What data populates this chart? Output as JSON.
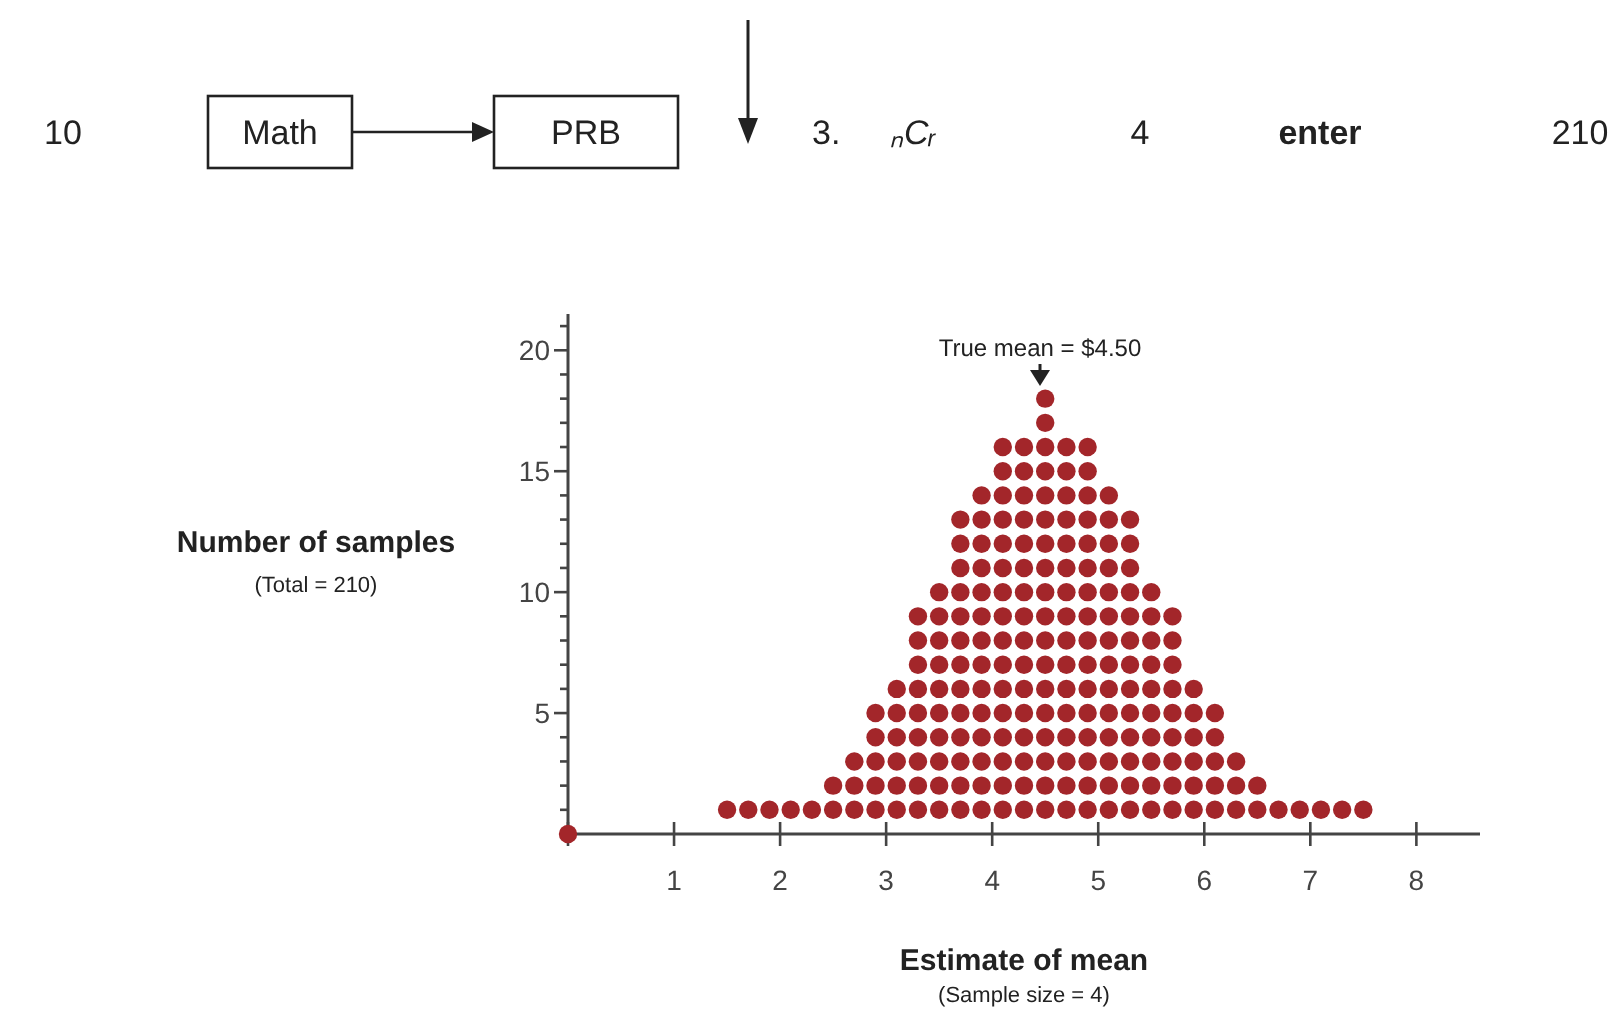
{
  "chart_data": {
    "type": "scatter",
    "xlabel": "Estimate of mean",
    "ylabel": "Number of samples",
    "marker": "circle",
    "xlim": [
      0,
      8.6
    ],
    "ylim": [
      0,
      21.5
    ],
    "xticks": [
      {
        "value": 0,
        "label": null
      },
      1,
      2,
      3,
      4,
      5,
      6,
      7,
      8
    ],
    "yticks": [
      {
        "value": 0,
        "label": null
      },
      {
        "value": 1,
        "label": null
      },
      {
        "value": 2,
        "label": null
      },
      {
        "value": 3,
        "label": null
      },
      {
        "value": 4,
        "label": null
      },
      5,
      {
        "value": 6,
        "label": null
      },
      {
        "value": 7,
        "label": null
      },
      {
        "value": 8,
        "label": null
      },
      {
        "value": 9,
        "label": null
      },
      10,
      {
        "value": 11,
        "label": null
      },
      {
        "value": 12,
        "label": null
      },
      {
        "value": 13,
        "label": null
      },
      {
        "value": 14,
        "label": null
      },
      15,
      {
        "value": 16,
        "label": null
      },
      {
        "value": 17,
        "label": null
      },
      {
        "value": 18,
        "label": null
      },
      {
        "value": 19,
        "label": null
      },
      20,
      {
        "value": 21,
        "label": null
      }
    ],
    "annotations": [
      "True mean = $4.50",
      "(Total = 210)",
      "(Sample size = 4)",
      "10",
      "Math",
      "PRB",
      "3.",
      "ₙCᵣ",
      "4",
      "enter",
      "210"
    ],
    "series": [
      {
        "color": "#a3262a",
        "x": [
          0,
          1.5,
          1.7,
          1.9,
          2.1,
          2.3,
          2.5,
          2.5,
          2.7,
          2.7,
          2.7,
          2.9,
          2.9,
          2.9,
          2.9,
          2.9,
          3.1,
          3.1,
          3.1,
          3.1,
          3.1,
          3.1,
          3.3,
          3.3,
          3.3,
          3.3,
          3.3,
          3.3,
          3.3,
          3.3,
          3.3,
          3.5,
          3.5,
          3.5,
          3.5,
          3.5,
          3.5,
          3.5,
          3.5,
          3.5,
          3.5,
          3.7,
          3.7,
          3.7,
          3.7,
          3.7,
          3.7,
          3.7,
          3.7,
          3.7,
          3.7,
          3.7,
          3.7,
          3.7,
          3.9,
          3.9,
          3.9,
          3.9,
          3.9,
          3.9,
          3.9,
          3.9,
          3.9,
          3.9,
          3.9,
          3.9,
          3.9,
          3.9,
          4.1,
          4.1,
          4.1,
          4.1,
          4.1,
          4.1,
          4.1,
          4.1,
          4.1,
          4.1,
          4.1,
          4.1,
          4.1,
          4.1,
          4.1,
          4.1,
          4.3,
          4.3,
          4.3,
          4.3,
          4.3,
          4.3,
          4.3,
          4.3,
          4.3,
          4.3,
          4.3,
          4.3,
          4.3,
          4.3,
          4.3,
          4.3,
          4.5,
          4.5,
          4.5,
          4.5,
          4.5,
          4.5,
          4.5,
          4.5,
          4.5,
          4.5,
          4.5,
          4.5,
          4.5,
          4.5,
          4.5,
          4.5,
          4.5,
          4.5,
          4.7,
          4.7,
          4.7,
          4.7,
          4.7,
          4.7,
          4.7,
          4.7,
          4.7,
          4.7,
          4.7,
          4.7,
          4.7,
          4.7,
          4.7,
          4.7,
          4.9,
          4.9,
          4.9,
          4.9,
          4.9,
          4.9,
          4.9,
          4.9,
          4.9,
          4.9,
          4.9,
          4.9,
          4.9,
          4.9,
          4.9,
          4.9,
          5.1,
          5.1,
          5.1,
          5.1,
          5.1,
          5.1,
          5.1,
          5.1,
          5.1,
          5.1,
          5.1,
          5.1,
          5.1,
          5.1,
          5.3,
          5.3,
          5.3,
          5.3,
          5.3,
          5.3,
          5.3,
          5.3,
          5.3,
          5.3,
          5.3,
          5.3,
          5.3,
          5.5,
          5.5,
          5.5,
          5.5,
          5.5,
          5.5,
          5.5,
          5.5,
          5.5,
          5.5,
          5.7,
          5.7,
          5.7,
          5.7,
          5.7,
          5.7,
          5.7,
          5.7,
          5.7,
          5.9,
          5.9,
          5.9,
          5.9,
          5.9,
          5.9,
          6.1,
          6.1,
          6.1,
          6.1,
          6.1,
          6.3,
          6.3,
          6.3,
          6.5,
          6.5,
          6.7,
          6.9,
          7.1,
          7.3,
          7.5
        ],
        "values": [
          0,
          1,
          1,
          1,
          1,
          1,
          1,
          2,
          1,
          2,
          3,
          1,
          2,
          3,
          4,
          5,
          1,
          2,
          3,
          4,
          5,
          6,
          1,
          2,
          3,
          4,
          5,
          6,
          7,
          8,
          9,
          1,
          2,
          3,
          4,
          5,
          6,
          7,
          8,
          9,
          10,
          1,
          2,
          3,
          4,
          5,
          6,
          7,
          8,
          9,
          10,
          11,
          12,
          13,
          1,
          2,
          3,
          4,
          5,
          6,
          7,
          8,
          9,
          10,
          11,
          12,
          13,
          14,
          1,
          2,
          3,
          4,
          5,
          6,
          7,
          8,
          9,
          10,
          11,
          12,
          13,
          14,
          15,
          16,
          1,
          2,
          3,
          4,
          5,
          6,
          7,
          8,
          9,
          10,
          11,
          12,
          13,
          14,
          15,
          16,
          1,
          2,
          3,
          4,
          5,
          6,
          7,
          8,
          9,
          10,
          11,
          12,
          13,
          14,
          15,
          16,
          17,
          18,
          1,
          2,
          3,
          4,
          5,
          6,
          7,
          8,
          9,
          10,
          11,
          12,
          13,
          14,
          15,
          16,
          1,
          2,
          3,
          4,
          5,
          6,
          7,
          8,
          9,
          10,
          11,
          12,
          13,
          14,
          15,
          16,
          1,
          2,
          3,
          4,
          5,
          6,
          7,
          8,
          9,
          10,
          11,
          12,
          13,
          14,
          1,
          2,
          3,
          4,
          5,
          6,
          7,
          8,
          9,
          10,
          11,
          12,
          13,
          1,
          2,
          3,
          4,
          5,
          6,
          7,
          8,
          9,
          10,
          1,
          2,
          3,
          4,
          5,
          6,
          7,
          8,
          9,
          1,
          2,
          3,
          4,
          5,
          6,
          1,
          2,
          3,
          4,
          5,
          1,
          2,
          3,
          1,
          2,
          1,
          1,
          1,
          1,
          1
        ]
      }
    ]
  }
}
